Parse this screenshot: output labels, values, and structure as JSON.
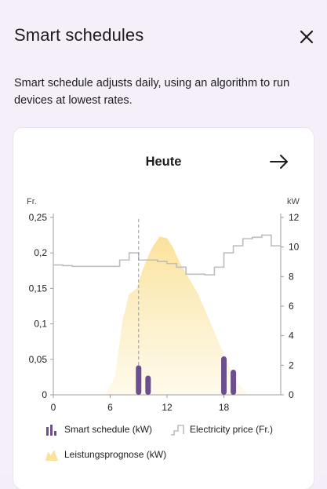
{
  "dialog": {
    "title": "Smart schedules",
    "description": "Smart schedule adjusts daily, using an algorithm to run devices at lowest rates."
  },
  "card": {
    "title": "Heute"
  },
  "colors": {
    "schedule": "#6b4f8f",
    "price": "#bdbdbd",
    "forecast_top": "#fbe29a",
    "forecast_bottom": "#fdf6dc",
    "now_line": "#9a9a9a"
  },
  "chart_data": {
    "type": "bar",
    "x_ticks": [
      "0",
      "6",
      "12",
      "18"
    ],
    "xlim": [
      0,
      24
    ],
    "y_left": {
      "unit": "Fr.",
      "ticks": [
        "0",
        "0,05",
        "0,1",
        "0,15",
        "0,2",
        "0,25"
      ],
      "ylim": [
        0,
        0.25
      ]
    },
    "y_right": {
      "unit": "kW",
      "ticks": [
        "0",
        "2",
        "4",
        "6",
        "8",
        "10",
        "12"
      ],
      "ylim": [
        0,
        12
      ]
    },
    "now_hour": 9,
    "series": [
      {
        "name": "Smart schedule (kW)",
        "type": "bar",
        "axis": "right",
        "x": [
          9,
          10,
          18,
          19
        ],
        "values": [
          2.0,
          1.3,
          2.6,
          1.7
        ]
      },
      {
        "name": "Electricity price (Fr.)",
        "type": "step",
        "axis": "left",
        "x": [
          0,
          1,
          2,
          3,
          4,
          5,
          6,
          7,
          8,
          9,
          10,
          11,
          12,
          13,
          14,
          15,
          16,
          17,
          18,
          19,
          20,
          21,
          22,
          23,
          24
        ],
        "values": [
          0.183,
          0.182,
          0.181,
          0.181,
          0.181,
          0.181,
          0.181,
          0.19,
          0.2,
          0.19,
          0.19,
          0.188,
          0.185,
          0.18,
          0.17,
          0.17,
          0.169,
          0.18,
          0.2,
          0.21,
          0.22,
          0.222,
          0.225,
          0.21,
          0.21
        ]
      },
      {
        "name": "Leistungsprognose (kW)",
        "type": "area",
        "axis": "right",
        "x": [
          5.5,
          6.5,
          7.3,
          8.0,
          8.8,
          9.5,
          10.3,
          11.2,
          12.0,
          12.6,
          13.3,
          14.2,
          15.3,
          16.5,
          17.5,
          18.5,
          19.5,
          20.5
        ],
        "values": [
          0,
          1.2,
          5.0,
          6.8,
          7.2,
          8.6,
          9.8,
          10.7,
          10.6,
          10.0,
          9.0,
          8.0,
          6.8,
          5.0,
          3.5,
          2.0,
          0.8,
          0
        ]
      }
    ]
  }
}
